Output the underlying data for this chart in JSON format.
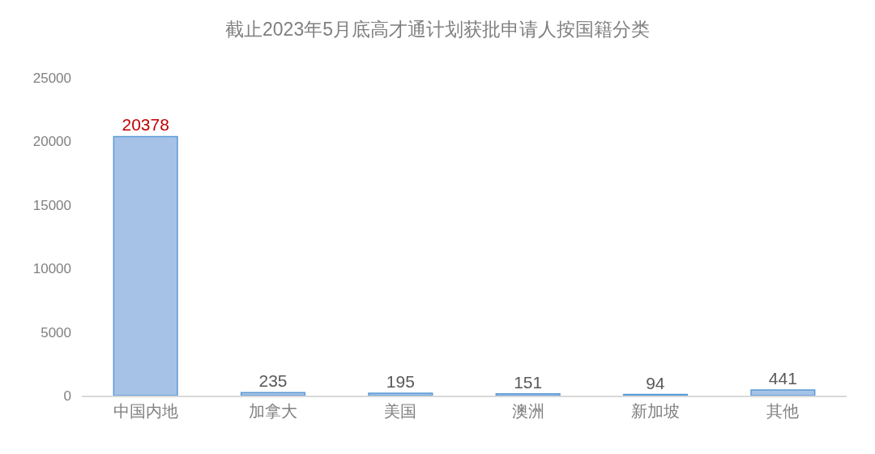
{
  "chart_data": {
    "type": "bar",
    "title": "截止2023年5月底高才通计划获批申请人按国籍分类",
    "categories": [
      "中国内地",
      "加拿大",
      "美国",
      "澳洲",
      "新加坡",
      "其他"
    ],
    "values": [
      20378,
      235,
      195,
      151,
      94,
      441
    ],
    "color": "#a6c3e7",
    "ylim": [
      0,
      25000
    ],
    "yticks": [
      0,
      5000,
      10000,
      15000,
      20000,
      25000
    ],
    "grid": false,
    "legend": false,
    "data_labels": true
  }
}
